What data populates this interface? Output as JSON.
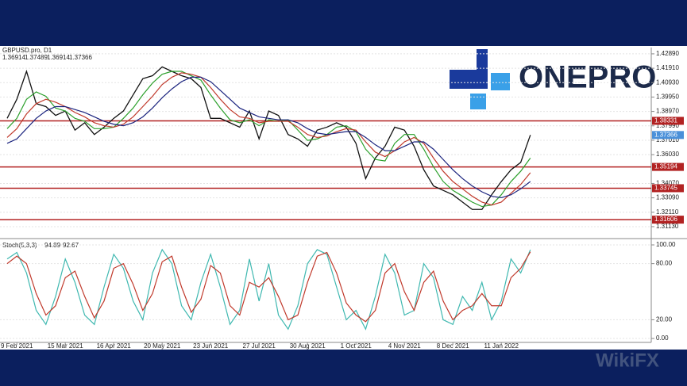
{
  "brand": "ONEPRO",
  "watermark": "WikiFX",
  "chart_data": [
    {
      "type": "line",
      "title": "GBPUSD.pro, D1",
      "ohlc": [
        1.36914,
        1.37489,
        1.36914,
        1.37366
      ],
      "categories": [
        null,
        "9 Feb 2021",
        null,
        null,
        null,
        null,
        "15 Mar 2021",
        null,
        null,
        null,
        null,
        "16 Apr 2021",
        null,
        null,
        null,
        null,
        "20 May 2021",
        null,
        null,
        null,
        null,
        "23 Jun 2021",
        null,
        null,
        null,
        null,
        "27 Jul 2021",
        null,
        null,
        null,
        null,
        "30 Aug 2021",
        null,
        null,
        null,
        null,
        "1 Oct 2021",
        null,
        null,
        null,
        null,
        "4 Nov 2021",
        null,
        null,
        null,
        null,
        "8 Dec 2021",
        null,
        null,
        null,
        null,
        "11 Jan 2022",
        null,
        null,
        null
      ],
      "series": [
        {
          "color": "#111111",
          "values": [
            1.385,
            1.398,
            1.417,
            1.395,
            1.393,
            1.387,
            1.39,
            1.377,
            1.382,
            1.374,
            1.379,
            1.385,
            1.39,
            1.401,
            1.412,
            1.414,
            1.42,
            1.417,
            1.414,
            1.412,
            1.406,
            1.385,
            1.385,
            1.382,
            1.379,
            1.39,
            1.371,
            1.39,
            1.387,
            1.374,
            1.371,
            1.366,
            1.377,
            1.379,
            1.382,
            1.379,
            1.368,
            1.344,
            1.358,
            1.366,
            1.379,
            1.377,
            1.366,
            1.35,
            1.339,
            1.336,
            1.333,
            1.328,
            1.323,
            1.323,
            1.333,
            1.342,
            1.35,
            1.355,
            1.37366
          ]
        },
        {
          "color": "#2ca02c",
          "values": [
            1.378,
            1.385,
            1.398,
            1.403,
            1.4,
            1.392,
            1.39,
            1.385,
            1.383,
            1.378,
            1.378,
            1.379,
            1.385,
            1.392,
            1.401,
            1.409,
            1.415,
            1.417,
            1.417,
            1.414,
            1.411,
            1.401,
            1.392,
            1.384,
            1.382,
            1.384,
            1.38,
            1.384,
            1.383,
            1.384,
            1.377,
            1.37,
            1.371,
            1.374,
            1.379,
            1.38,
            1.376,
            1.364,
            1.357,
            1.356,
            1.368,
            1.374,
            1.374,
            1.364,
            1.352,
            1.342,
            1.336,
            1.332,
            1.328,
            1.325,
            1.326,
            1.333,
            1.342,
            1.349,
            1.358
          ]
        },
        {
          "color": "#c0392b",
          "values": [
            1.372,
            1.378,
            1.388,
            1.395,
            1.398,
            1.396,
            1.393,
            1.389,
            1.386,
            1.382,
            1.38,
            1.379,
            1.381,
            1.386,
            1.393,
            1.4,
            1.408,
            1.413,
            1.416,
            1.415,
            1.413,
            1.406,
            1.398,
            1.391,
            1.386,
            1.385,
            1.382,
            1.383,
            1.383,
            1.383,
            1.379,
            1.374,
            1.372,
            1.373,
            1.376,
            1.378,
            1.377,
            1.369,
            1.362,
            1.359,
            1.363,
            1.369,
            1.372,
            1.368,
            1.358,
            1.349,
            1.342,
            1.337,
            1.332,
            1.328,
            1.326,
            1.328,
            1.334,
            1.34,
            1.348
          ]
        },
        {
          "color": "#1a237e",
          "values": [
            1.368,
            1.371,
            1.378,
            1.385,
            1.39,
            1.393,
            1.393,
            1.391,
            1.389,
            1.386,
            1.383,
            1.381,
            1.38,
            1.382,
            1.386,
            1.392,
            1.399,
            1.405,
            1.41,
            1.413,
            1.413,
            1.41,
            1.404,
            1.398,
            1.392,
            1.389,
            1.386,
            1.385,
            1.384,
            1.384,
            1.382,
            1.378,
            1.375,
            1.374,
            1.375,
            1.376,
            1.376,
            1.372,
            1.367,
            1.363,
            1.363,
            1.366,
            1.369,
            1.369,
            1.364,
            1.357,
            1.35,
            1.344,
            1.339,
            1.335,
            1.332,
            1.331,
            1.333,
            1.337,
            1.342
          ]
        }
      ],
      "levels": [
        1.38331,
        1.35194,
        1.33745,
        1.31606
      ],
      "level_color": "#b22222",
      "price_color": "#4a90d9",
      "ylim": [
        1.3048,
        1.4321
      ],
      "yticks": [
        {
          "value": 1.4289,
          "label": "1.42890"
        },
        {
          "value": 1.4191,
          "label": "1.41910"
        },
        {
          "value": 1.4093,
          "label": "1.40930"
        },
        {
          "value": 1.3995,
          "label": "1.39950"
        },
        {
          "value": 1.3897,
          "label": "1.38970"
        },
        {
          "value": 1.3799,
          "label": "1.37990"
        },
        {
          "value": 1.3701,
          "label": "1.37010"
        },
        {
          "value": 1.3603,
          "label": "1.36030"
        },
        {
          "value": 1.3407,
          "label": "1.34070"
        },
        {
          "value": 1.3309,
          "label": "1.33090"
        },
        {
          "value": 1.3211,
          "label": "1.32110"
        },
        {
          "value": 1.3113,
          "label": "1.31130"
        }
      ],
      "grid": true
    },
    {
      "type": "line",
      "title": "Stoch(5,3,3)",
      "series": [
        {
          "color": "#3fb8b0",
          "values": [
            85,
            92,
            70,
            30,
            15,
            45,
            85,
            60,
            25,
            15,
            55,
            90,
            75,
            40,
            20,
            70,
            95,
            80,
            35,
            20,
            60,
            90,
            55,
            15,
            30,
            85,
            40,
            80,
            25,
            10,
            35,
            80,
            95,
            90,
            55,
            20,
            30,
            10,
            45,
            90,
            70,
            25,
            30,
            80,
            65,
            20,
            15,
            45,
            30,
            60,
            20,
            40,
            85,
            70,
            94.89
          ]
        },
        {
          "color": "#c0392b",
          "values": [
            80,
            88,
            80,
            48,
            25,
            35,
            65,
            72,
            45,
            22,
            40,
            75,
            80,
            58,
            30,
            48,
            82,
            88,
            55,
            28,
            42,
            78,
            70,
            35,
            25,
            60,
            55,
            65,
            45,
            20,
            25,
            60,
            88,
            92,
            70,
            38,
            25,
            18,
            30,
            70,
            80,
            50,
            30,
            60,
            72,
            40,
            20,
            30,
            35,
            48,
            35,
            35,
            65,
            75,
            92.67
          ]
        }
      ],
      "ylim": [
        -4.2,
        103.4
      ],
      "yticks": [
        {
          "value": 100,
          "label": "100.00"
        },
        {
          "value": 80,
          "label": "80.00"
        },
        {
          "value": 20,
          "label": "20.00"
        },
        {
          "value": 0,
          "label": "0.00"
        }
      ],
      "grid": true
    }
  ]
}
